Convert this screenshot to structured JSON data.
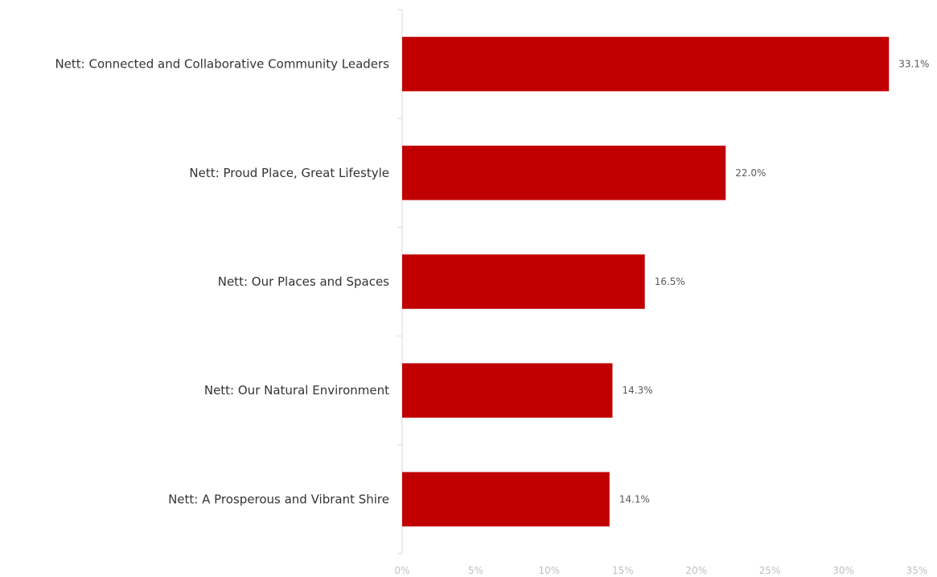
{
  "chart_data": {
    "type": "bar",
    "orientation": "horizontal",
    "categories": [
      "Nett: Connected and Collaborative Community Leaders",
      "Nett: Proud Place, Great Lifestyle",
      "Nett: Our Places and Spaces",
      "Nett: Our Natural Environment",
      "Nett: A Prosperous and Vibrant Shire"
    ],
    "values": [
      33.1,
      22.0,
      16.5,
      14.3,
      14.1
    ],
    "value_labels": [
      "33.1%",
      "22.0%",
      "16.5%",
      "14.3%",
      "14.1%"
    ],
    "xlim": [
      0,
      35
    ],
    "x_ticks": [
      0,
      5,
      10,
      15,
      20,
      25,
      30,
      35
    ],
    "x_tick_labels": [
      "0%",
      "5%",
      "10%",
      "15%",
      "20%",
      "25%",
      "30%",
      "35%"
    ],
    "grid": false,
    "legend": "none",
    "bar_color": "#C00000"
  }
}
